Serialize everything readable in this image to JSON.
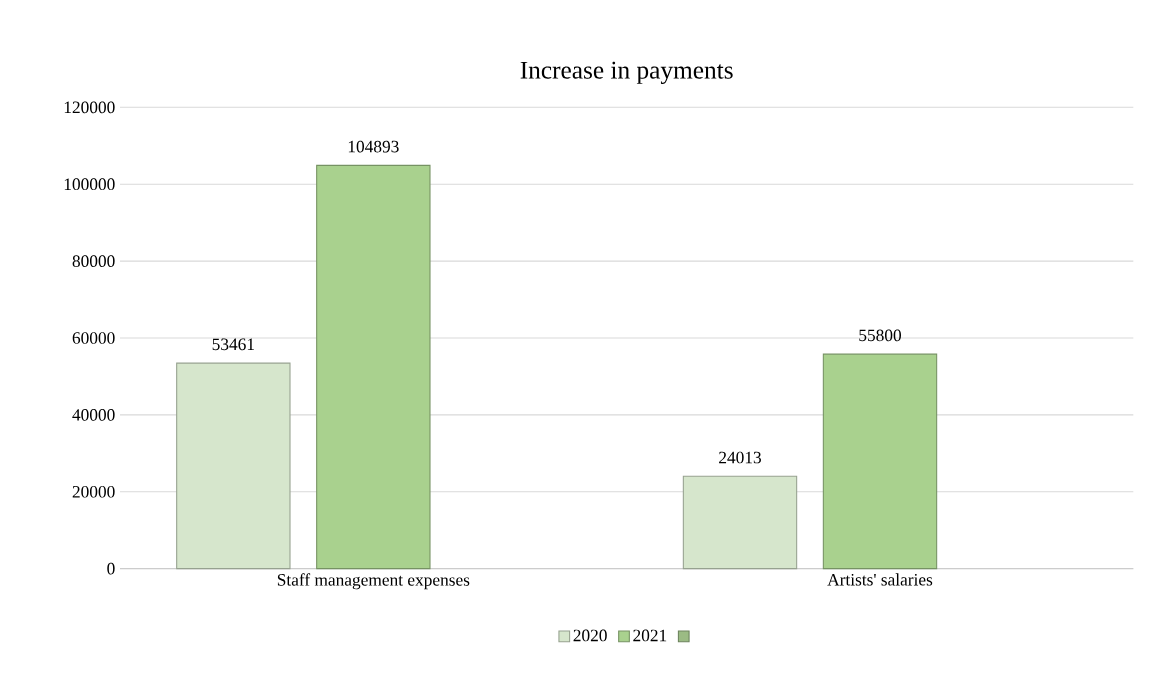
{
  "chart_data": {
    "type": "bar",
    "title": "Increase in payments",
    "categories": [
      "Staff management expenses",
      "Artists' salaries"
    ],
    "series": [
      {
        "name": "2020",
        "color": "#d6e6cc",
        "values": [
          53461,
          24013
        ]
      },
      {
        "name": "2021",
        "color": "#a9d18e",
        "values": [
          104893,
          55800
        ]
      },
      {
        "color": "#9bbb84",
        "values": [
          null,
          null
        ]
      }
    ],
    "ylim": [
      0,
      120000
    ],
    "yticks": [
      0,
      20000,
      40000,
      60000,
      80000,
      100000,
      120000
    ],
    "grid": "y",
    "legend": "bottom",
    "data_labels": true
  }
}
